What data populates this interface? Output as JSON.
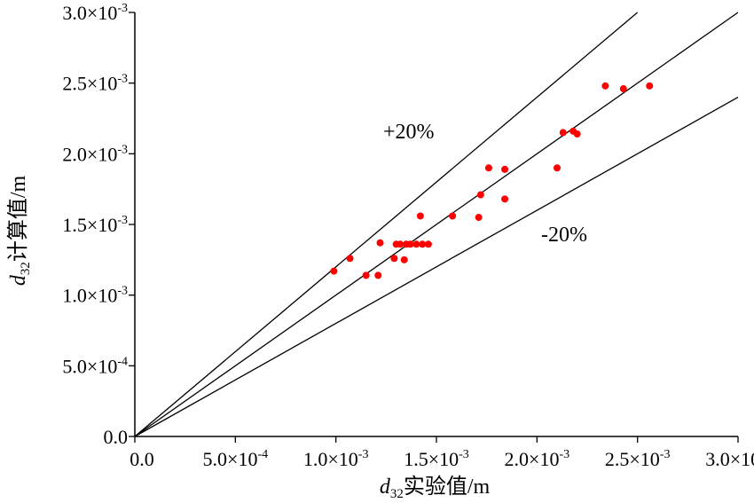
{
  "chart_data": {
    "type": "scatter",
    "xlabel": {
      "var": "d",
      "sub": "32",
      "text": "实验值/m"
    },
    "ylabel": {
      "var": "d",
      "sub": "32",
      "text": "计算值/m"
    },
    "xlim": [
      0,
      0.003
    ],
    "ylim": [
      0,
      0.003
    ],
    "x_ticks": [
      {
        "v": 0,
        "m": "0.0",
        "e": ""
      },
      {
        "v": 0.0005,
        "m": "5.0×10",
        "e": "-4"
      },
      {
        "v": 0.001,
        "m": "1.0×10",
        "e": "-3"
      },
      {
        "v": 0.0015,
        "m": "1.5×10",
        "e": "-3"
      },
      {
        "v": 0.002,
        "m": "2.0×10",
        "e": "-3"
      },
      {
        "v": 0.0025,
        "m": "2.5×10",
        "e": "-3"
      },
      {
        "v": 0.003,
        "m": "3.0×10",
        "e": "-3"
      }
    ],
    "y_ticks": [
      {
        "v": 0,
        "m": "0.0",
        "e": ""
      },
      {
        "v": 0.0005,
        "m": "5.0×10",
        "e": "-4"
      },
      {
        "v": 0.001,
        "m": "1.0×10",
        "e": "-3"
      },
      {
        "v": 0.0015,
        "m": "1.5×10",
        "e": "-3"
      },
      {
        "v": 0.002,
        "m": "2.0×10",
        "e": "-3"
      },
      {
        "v": 0.0025,
        "m": "2.5×10",
        "e": "-3"
      },
      {
        "v": 0.003,
        "m": "3.0×10",
        "e": "-3"
      }
    ],
    "reference_lines": [
      {
        "slope": 1.2,
        "label": "+20%"
      },
      {
        "slope": 1.0,
        "label": ""
      },
      {
        "slope": 0.8,
        "label": "-20%"
      }
    ],
    "marker_color": "#ff0000",
    "line_color": "#000000",
    "grid": false,
    "points": [
      {
        "x": 0.00099,
        "y": 0.00117
      },
      {
        "x": 0.00107,
        "y": 0.00126
      },
      {
        "x": 0.00115,
        "y": 0.00114
      },
      {
        "x": 0.00121,
        "y": 0.00114
      },
      {
        "x": 0.00122,
        "y": 0.00137
      },
      {
        "x": 0.00129,
        "y": 0.00126
      },
      {
        "x": 0.0013,
        "y": 0.00136
      },
      {
        "x": 0.00132,
        "y": 0.00136
      },
      {
        "x": 0.00134,
        "y": 0.00125
      },
      {
        "x": 0.00135,
        "y": 0.00136
      },
      {
        "x": 0.00137,
        "y": 0.00136
      },
      {
        "x": 0.0014,
        "y": 0.00136
      },
      {
        "x": 0.00142,
        "y": 0.00156
      },
      {
        "x": 0.00143,
        "y": 0.00136
      },
      {
        "x": 0.00146,
        "y": 0.00136
      },
      {
        "x": 0.00158,
        "y": 0.00156
      },
      {
        "x": 0.00171,
        "y": 0.00155
      },
      {
        "x": 0.00172,
        "y": 0.00171
      },
      {
        "x": 0.00176,
        "y": 0.0019
      },
      {
        "x": 0.00184,
        "y": 0.00189
      },
      {
        "x": 0.00184,
        "y": 0.00168
      },
      {
        "x": 0.0021,
        "y": 0.0019
      },
      {
        "x": 0.00213,
        "y": 0.00215
      },
      {
        "x": 0.00218,
        "y": 0.00216
      },
      {
        "x": 0.0022,
        "y": 0.00214
      },
      {
        "x": 0.00234,
        "y": 0.00248
      },
      {
        "x": 0.00243,
        "y": 0.00246
      },
      {
        "x": 0.00256,
        "y": 0.00248
      }
    ]
  }
}
